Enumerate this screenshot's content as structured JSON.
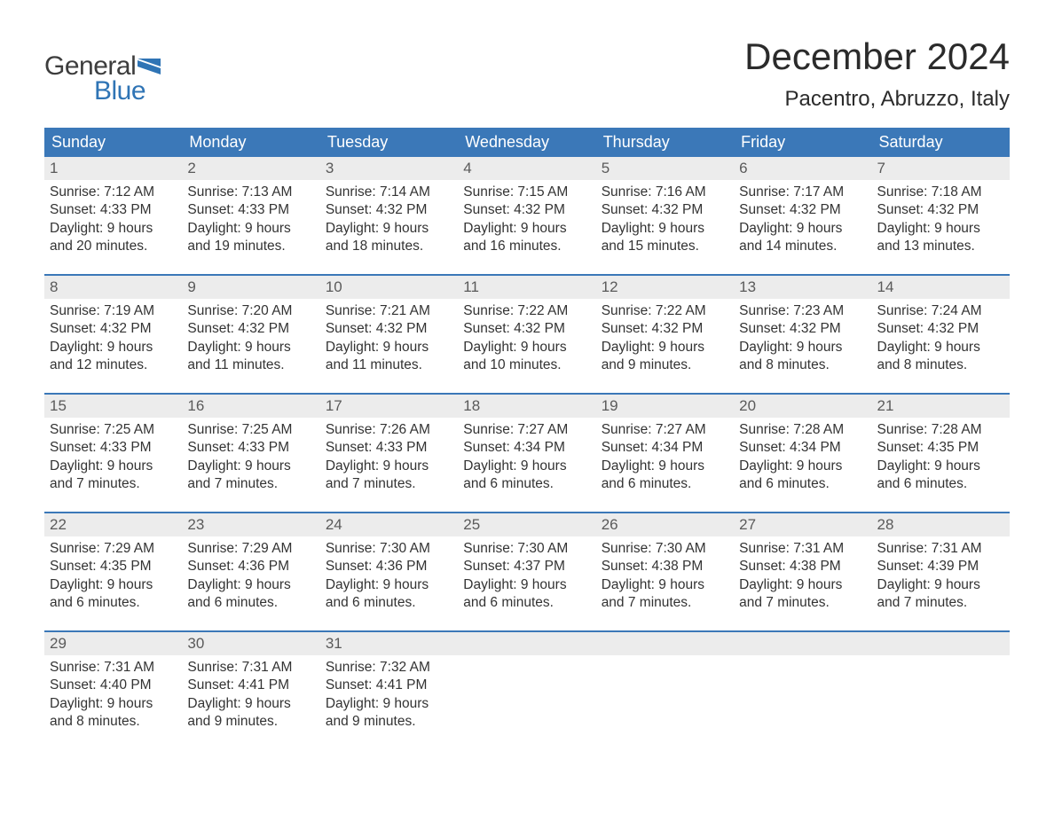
{
  "logo": {
    "word1": "General",
    "word2": "Blue",
    "word1_color": "#3d3d3d",
    "word2_color": "#2f74b5"
  },
  "title": "December 2024",
  "location": "Pacentro, Abruzzo, Italy",
  "colors": {
    "header_blue": "#3b78b8",
    "row_border": "#3b78b8",
    "date_bar_bg": "#ececec",
    "date_bar_text": "#5a5a5a",
    "body_text": "#333333",
    "background": "#ffffff"
  },
  "day_labels": [
    "Sunday",
    "Monday",
    "Tuesday",
    "Wednesday",
    "Thursday",
    "Friday",
    "Saturday"
  ],
  "weeks": [
    [
      {
        "date": "1",
        "sunrise": "Sunrise: 7:12 AM",
        "sunset": "Sunset: 4:33 PM",
        "daylight1": "Daylight: 9 hours",
        "daylight2": "and 20 minutes."
      },
      {
        "date": "2",
        "sunrise": "Sunrise: 7:13 AM",
        "sunset": "Sunset: 4:33 PM",
        "daylight1": "Daylight: 9 hours",
        "daylight2": "and 19 minutes."
      },
      {
        "date": "3",
        "sunrise": "Sunrise: 7:14 AM",
        "sunset": "Sunset: 4:32 PM",
        "daylight1": "Daylight: 9 hours",
        "daylight2": "and 18 minutes."
      },
      {
        "date": "4",
        "sunrise": "Sunrise: 7:15 AM",
        "sunset": "Sunset: 4:32 PM",
        "daylight1": "Daylight: 9 hours",
        "daylight2": "and 16 minutes."
      },
      {
        "date": "5",
        "sunrise": "Sunrise: 7:16 AM",
        "sunset": "Sunset: 4:32 PM",
        "daylight1": "Daylight: 9 hours",
        "daylight2": "and 15 minutes."
      },
      {
        "date": "6",
        "sunrise": "Sunrise: 7:17 AM",
        "sunset": "Sunset: 4:32 PM",
        "daylight1": "Daylight: 9 hours",
        "daylight2": "and 14 minutes."
      },
      {
        "date": "7",
        "sunrise": "Sunrise: 7:18 AM",
        "sunset": "Sunset: 4:32 PM",
        "daylight1": "Daylight: 9 hours",
        "daylight2": "and 13 minutes."
      }
    ],
    [
      {
        "date": "8",
        "sunrise": "Sunrise: 7:19 AM",
        "sunset": "Sunset: 4:32 PM",
        "daylight1": "Daylight: 9 hours",
        "daylight2": "and 12 minutes."
      },
      {
        "date": "9",
        "sunrise": "Sunrise: 7:20 AM",
        "sunset": "Sunset: 4:32 PM",
        "daylight1": "Daylight: 9 hours",
        "daylight2": "and 11 minutes."
      },
      {
        "date": "10",
        "sunrise": "Sunrise: 7:21 AM",
        "sunset": "Sunset: 4:32 PM",
        "daylight1": "Daylight: 9 hours",
        "daylight2": "and 11 minutes."
      },
      {
        "date": "11",
        "sunrise": "Sunrise: 7:22 AM",
        "sunset": "Sunset: 4:32 PM",
        "daylight1": "Daylight: 9 hours",
        "daylight2": "and 10 minutes."
      },
      {
        "date": "12",
        "sunrise": "Sunrise: 7:22 AM",
        "sunset": "Sunset: 4:32 PM",
        "daylight1": "Daylight: 9 hours",
        "daylight2": "and 9 minutes."
      },
      {
        "date": "13",
        "sunrise": "Sunrise: 7:23 AM",
        "sunset": "Sunset: 4:32 PM",
        "daylight1": "Daylight: 9 hours",
        "daylight2": "and 8 minutes."
      },
      {
        "date": "14",
        "sunrise": "Sunrise: 7:24 AM",
        "sunset": "Sunset: 4:32 PM",
        "daylight1": "Daylight: 9 hours",
        "daylight2": "and 8 minutes."
      }
    ],
    [
      {
        "date": "15",
        "sunrise": "Sunrise: 7:25 AM",
        "sunset": "Sunset: 4:33 PM",
        "daylight1": "Daylight: 9 hours",
        "daylight2": "and 7 minutes."
      },
      {
        "date": "16",
        "sunrise": "Sunrise: 7:25 AM",
        "sunset": "Sunset: 4:33 PM",
        "daylight1": "Daylight: 9 hours",
        "daylight2": "and 7 minutes."
      },
      {
        "date": "17",
        "sunrise": "Sunrise: 7:26 AM",
        "sunset": "Sunset: 4:33 PM",
        "daylight1": "Daylight: 9 hours",
        "daylight2": "and 7 minutes."
      },
      {
        "date": "18",
        "sunrise": "Sunrise: 7:27 AM",
        "sunset": "Sunset: 4:34 PM",
        "daylight1": "Daylight: 9 hours",
        "daylight2": "and 6 minutes."
      },
      {
        "date": "19",
        "sunrise": "Sunrise: 7:27 AM",
        "sunset": "Sunset: 4:34 PM",
        "daylight1": "Daylight: 9 hours",
        "daylight2": "and 6 minutes."
      },
      {
        "date": "20",
        "sunrise": "Sunrise: 7:28 AM",
        "sunset": "Sunset: 4:34 PM",
        "daylight1": "Daylight: 9 hours",
        "daylight2": "and 6 minutes."
      },
      {
        "date": "21",
        "sunrise": "Sunrise: 7:28 AM",
        "sunset": "Sunset: 4:35 PM",
        "daylight1": "Daylight: 9 hours",
        "daylight2": "and 6 minutes."
      }
    ],
    [
      {
        "date": "22",
        "sunrise": "Sunrise: 7:29 AM",
        "sunset": "Sunset: 4:35 PM",
        "daylight1": "Daylight: 9 hours",
        "daylight2": "and 6 minutes."
      },
      {
        "date": "23",
        "sunrise": "Sunrise: 7:29 AM",
        "sunset": "Sunset: 4:36 PM",
        "daylight1": "Daylight: 9 hours",
        "daylight2": "and 6 minutes."
      },
      {
        "date": "24",
        "sunrise": "Sunrise: 7:30 AM",
        "sunset": "Sunset: 4:36 PM",
        "daylight1": "Daylight: 9 hours",
        "daylight2": "and 6 minutes."
      },
      {
        "date": "25",
        "sunrise": "Sunrise: 7:30 AM",
        "sunset": "Sunset: 4:37 PM",
        "daylight1": "Daylight: 9 hours",
        "daylight2": "and 6 minutes."
      },
      {
        "date": "26",
        "sunrise": "Sunrise: 7:30 AM",
        "sunset": "Sunset: 4:38 PM",
        "daylight1": "Daylight: 9 hours",
        "daylight2": "and 7 minutes."
      },
      {
        "date": "27",
        "sunrise": "Sunrise: 7:31 AM",
        "sunset": "Sunset: 4:38 PM",
        "daylight1": "Daylight: 9 hours",
        "daylight2": "and 7 minutes."
      },
      {
        "date": "28",
        "sunrise": "Sunrise: 7:31 AM",
        "sunset": "Sunset: 4:39 PM",
        "daylight1": "Daylight: 9 hours",
        "daylight2": "and 7 minutes."
      }
    ],
    [
      {
        "date": "29",
        "sunrise": "Sunrise: 7:31 AM",
        "sunset": "Sunset: 4:40 PM",
        "daylight1": "Daylight: 9 hours",
        "daylight2": "and 8 minutes."
      },
      {
        "date": "30",
        "sunrise": "Sunrise: 7:31 AM",
        "sunset": "Sunset: 4:41 PM",
        "daylight1": "Daylight: 9 hours",
        "daylight2": "and 9 minutes."
      },
      {
        "date": "31",
        "sunrise": "Sunrise: 7:32 AM",
        "sunset": "Sunset: 4:41 PM",
        "daylight1": "Daylight: 9 hours",
        "daylight2": "and 9 minutes."
      },
      {
        "date": "",
        "sunrise": "",
        "sunset": "",
        "daylight1": "",
        "daylight2": ""
      },
      {
        "date": "",
        "sunrise": "",
        "sunset": "",
        "daylight1": "",
        "daylight2": ""
      },
      {
        "date": "",
        "sunrise": "",
        "sunset": "",
        "daylight1": "",
        "daylight2": ""
      },
      {
        "date": "",
        "sunrise": "",
        "sunset": "",
        "daylight1": "",
        "daylight2": ""
      }
    ]
  ]
}
